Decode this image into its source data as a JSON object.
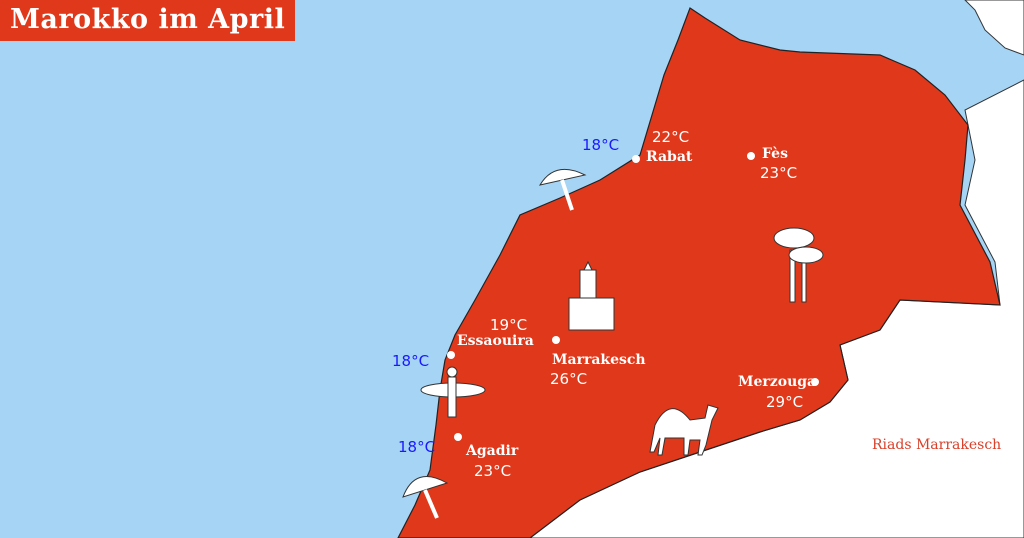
{
  "title": "Marokko im April",
  "colors": {
    "sea": "#a6d4f4",
    "land": "#e0381a",
    "neighbor": "#ffffff",
    "sea_temp": "#1a1aff",
    "label": "#ffffff"
  },
  "cities": [
    {
      "name": "Rabat",
      "temp": "22°C",
      "sea_temp": "18°C"
    },
    {
      "name": "Fès",
      "temp": "23°C"
    },
    {
      "name": "Essaouira",
      "temp": "19°C",
      "sea_temp": "18°C"
    },
    {
      "name": "Marrakesch",
      "temp": "26°C"
    },
    {
      "name": "Agadir",
      "temp": "23°C",
      "sea_temp": "18°C"
    },
    {
      "name": "Merzouga",
      "temp": "29°C"
    }
  ],
  "icons": [
    "beach-umbrella-icon",
    "surfer-icon",
    "mosque-icon",
    "palm-tree-icon",
    "camel-icon"
  ],
  "logo": "Riads Marrakesch"
}
